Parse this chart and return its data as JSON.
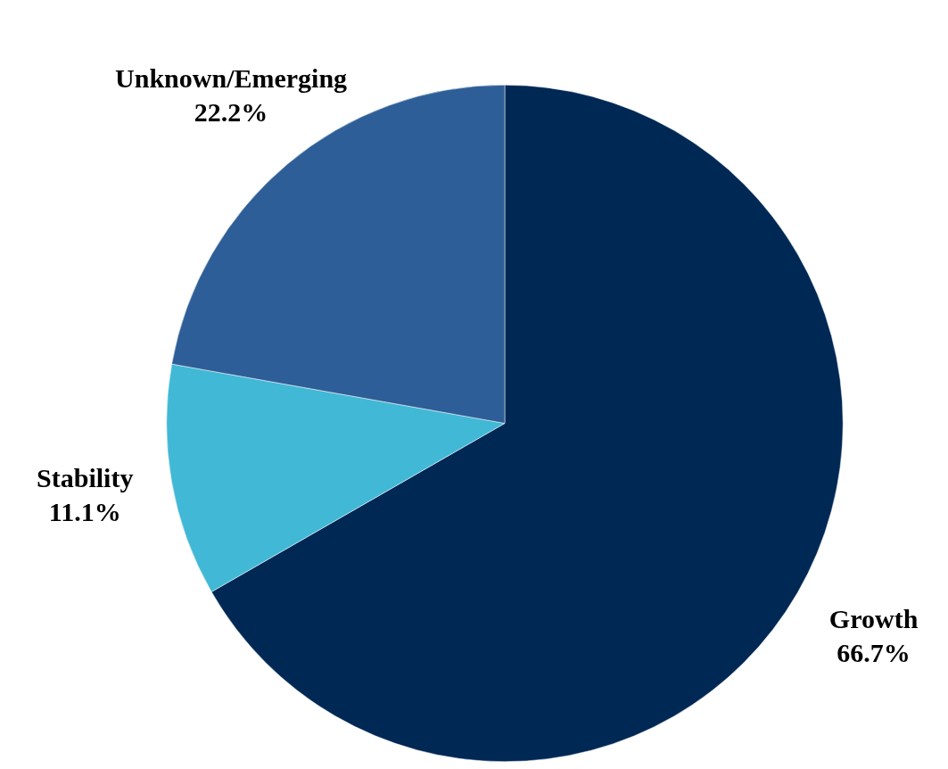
{
  "chart_data": {
    "type": "pie",
    "categories": [
      "Growth",
      "Stability",
      "Unknown/Emerging"
    ],
    "values": [
      66.7,
      11.1,
      22.2
    ],
    "colors": [
      "#002855",
      "#41b8d5",
      "#2e5e97"
    ],
    "value_labels": [
      "66.7%",
      "11.1%",
      "22.2%"
    ],
    "legend": false
  }
}
